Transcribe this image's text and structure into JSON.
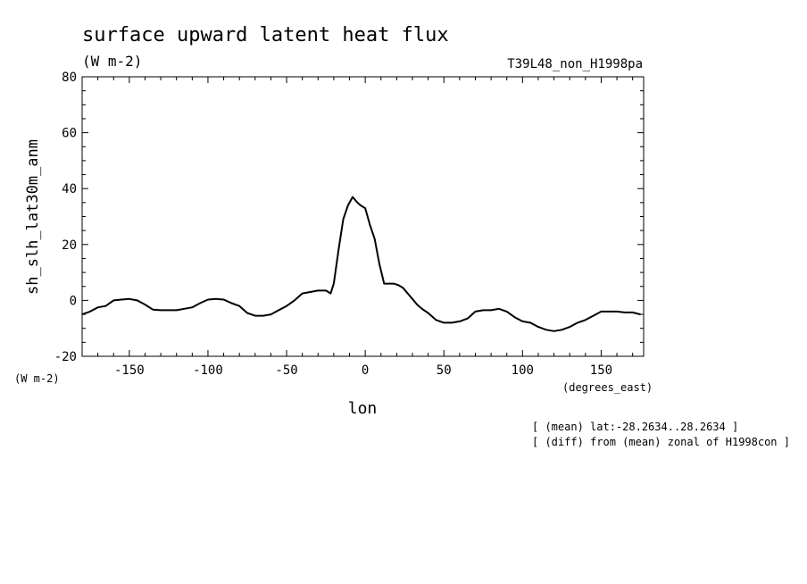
{
  "chart_data": {
    "type": "line",
    "title": "surface upward latent heat flux",
    "title_units": "(W m-2)",
    "run_label": "T39L48_non_H1998pa",
    "ylabel": "sh_slh_lat30m_anm",
    "y_units": "(W m-2)",
    "xlabel": "lon",
    "x_units": "(degrees_east)",
    "xlim": [
      -180,
      177
    ],
    "ylim": [
      -20,
      80
    ],
    "x_ticks": [
      -150,
      -100,
      -50,
      0,
      50,
      100,
      150
    ],
    "x_tick_labels": [
      "-150",
      "-100",
      "-50",
      "0",
      "50",
      "100",
      "150"
    ],
    "y_ticks": [
      -20,
      0,
      20,
      40,
      60,
      80
    ],
    "y_tick_labels": [
      "-20",
      "0",
      "20",
      "40",
      "60",
      "80"
    ],
    "annotations": [
      "[ (mean) lat:-28.2634..28.2634 ]",
      "[ (diff) from (mean) zonal of H1998con ]"
    ],
    "grid": false,
    "x": [
      -180,
      -175,
      -170,
      -165,
      -160,
      -155,
      -150,
      -145,
      -140,
      -135,
      -130,
      -125,
      -120,
      -115,
      -110,
      -105,
      -100,
      -95,
      -90,
      -85,
      -80,
      -75,
      -70,
      -65,
      -60,
      -55,
      -50,
      -45,
      -40,
      -35,
      -30,
      -25,
      -22,
      -20,
      -17,
      -14,
      -11,
      -8,
      -5,
      -3,
      0,
      3,
      6,
      9,
      12,
      15,
      18,
      21,
      24,
      27,
      30,
      33,
      36,
      40,
      45,
      50,
      55,
      60,
      65,
      70,
      75,
      80,
      85,
      90,
      95,
      100,
      105,
      110,
      115,
      120,
      125,
      130,
      135,
      140,
      145,
      150,
      155,
      160,
      165,
      170,
      175
    ],
    "series": [
      {
        "values": [
          -5,
          -4,
          -2.5,
          -2,
          0,
          0.3,
          0.5,
          0,
          -1.5,
          -3.3,
          -3.5,
          -3.5,
          -3.5,
          -3,
          -2.5,
          -1,
          0.3,
          0.5,
          0.3,
          -1,
          -2,
          -4.5,
          -5.5,
          -5.5,
          -5,
          -3.5,
          -2,
          0,
          2.5,
          3,
          3.5,
          3.5,
          2.5,
          6,
          18,
          29,
          34,
          37,
          35,
          34,
          33,
          27,
          22,
          13,
          6,
          6,
          6,
          5.5,
          4.5,
          2.5,
          0.5,
          -1.5,
          -3,
          -4.5,
          -7,
          -8,
          -8,
          -7.5,
          -6.5,
          -4,
          -3.5,
          -3.5,
          -3,
          -4,
          -6,
          -7.5,
          -8,
          -9.5,
          -10.5,
          -11,
          -10.5,
          -9.5,
          -8,
          -7,
          -5.5,
          -4,
          -4,
          -4,
          -4.3,
          -4.3,
          -5
        ]
      }
    ]
  }
}
